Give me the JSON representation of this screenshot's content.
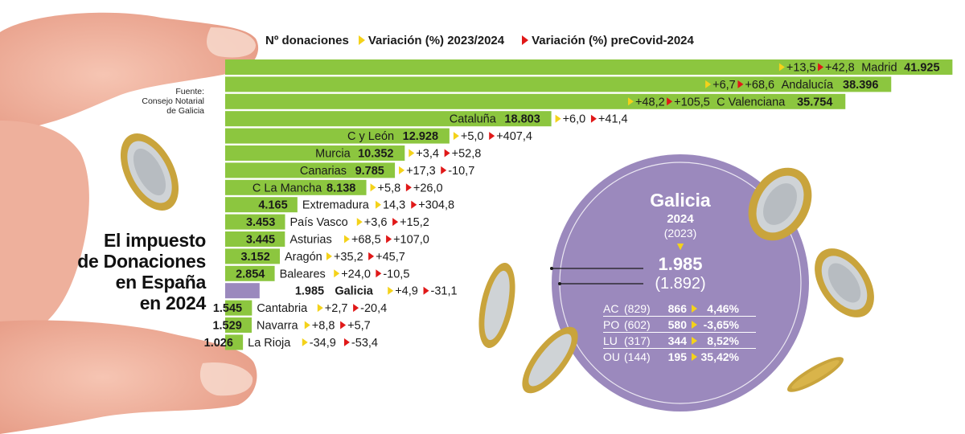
{
  "legend": {
    "count_label": "Nº donaciones",
    "var1_label": "Variación (%) 2023/2024",
    "var2_label": "Variación (%) preCovid-2024"
  },
  "source": [
    "Fuente:",
    "Consejo Notarial",
    "de Galicia"
  ],
  "title_lines": [
    "El impuesto",
    "de Donaciones",
    "en España",
    "en 2024"
  ],
  "colors": {
    "bar": "#8cc63f",
    "galicia_bar": "#9b89bd",
    "galicia_circle": "#9b89bd",
    "var1_marker": "#f4d21a",
    "var2_marker": "#e01818"
  },
  "chart_data": {
    "type": "bar",
    "orientation": "horizontal",
    "categories": [
      "Madrid",
      "Andalucía",
      "C Valenciana",
      "Cataluña",
      "C y León",
      "Murcia",
      "Canarias",
      "C La Mancha",
      "Extremadura",
      "País Vasco",
      "Asturias",
      "Aragón",
      "Baleares",
      "Galicia",
      "Cantabria",
      "Navarra",
      "La Rioja"
    ],
    "values": [
      41925,
      38396,
      35754,
      18803,
      12928,
      10352,
      9785,
      8138,
      4165,
      3453,
      3445,
      3152,
      2854,
      1985,
      1545,
      1529,
      1026
    ],
    "value_labels": [
      "41.925",
      "38.396",
      "35.754",
      "18.803",
      "12.928",
      "10.352",
      "9.785",
      "8.138",
      "4.165",
      "3.453",
      "3.445",
      "3.152",
      "2.854",
      "1.985",
      "1.545",
      "1.529",
      "1.026"
    ],
    "series": [
      {
        "name": "Nº donaciones",
        "values": [
          41925,
          38396,
          35754,
          18803,
          12928,
          10352,
          9785,
          8138,
          4165,
          3453,
          3445,
          3152,
          2854,
          1985,
          1545,
          1529,
          1026
        ]
      },
      {
        "name": "Variación (%) 2023/2024",
        "values": [
          13.5,
          6.7,
          48.2,
          6.0,
          5.0,
          3.4,
          17.3,
          5.8,
          14.3,
          3.6,
          68.5,
          35.2,
          24.0,
          4.9,
          2.7,
          8.8,
          -34.9
        ]
      },
      {
        "name": "Variación (%) preCovid-2024",
        "values": [
          42.8,
          68.6,
          105.5,
          41.4,
          407.4,
          52.8,
          -10.7,
          26.0,
          304.8,
          15.2,
          107.0,
          45.7,
          -10.5,
          -31.1,
          -20.4,
          5.7,
          -53.4
        ]
      }
    ],
    "var1_labels": [
      "+13,5",
      "+6,7",
      "+48,2",
      "+6,0",
      "+5,0",
      "+3,4",
      "+17,3",
      "+5,8",
      "14,3",
      "+3,6",
      "+68,5",
      "+35,2",
      "+24,0",
      "+4,9",
      "+2,7",
      "+8,8",
      "-34,9"
    ],
    "var2_labels": [
      "+42,8",
      "+68,6",
      "+105,5",
      "+41,4",
      "+407,4",
      "+52,8",
      "-10,7",
      "+26,0",
      "+304,8",
      "+15,2",
      "+107,0",
      "+45,7",
      "-10,5",
      "-31,1",
      "-20,4",
      "+5,7",
      "-53,4"
    ],
    "xlim": [
      0,
      42000
    ],
    "grid": false,
    "legend_position": "top"
  },
  "galicia": {
    "title": "Galicia",
    "year": "2024",
    "prev_year": "(2023)",
    "arrow": "▼",
    "value": "1.985",
    "prev_value": "(1.892)",
    "provinces": [
      {
        "code": "AC",
        "prev": "(829)",
        "now": "866",
        "var": "4,46%"
      },
      {
        "code": "PO",
        "prev": "(602)",
        "now": "580",
        "var": "-3,65%"
      },
      {
        "code": "LU",
        "prev": "(317)",
        "now": "344",
        "var": "8,52%"
      },
      {
        "code": "OU",
        "prev": "(144)",
        "now": "195",
        "var": "35,42%"
      }
    ]
  }
}
